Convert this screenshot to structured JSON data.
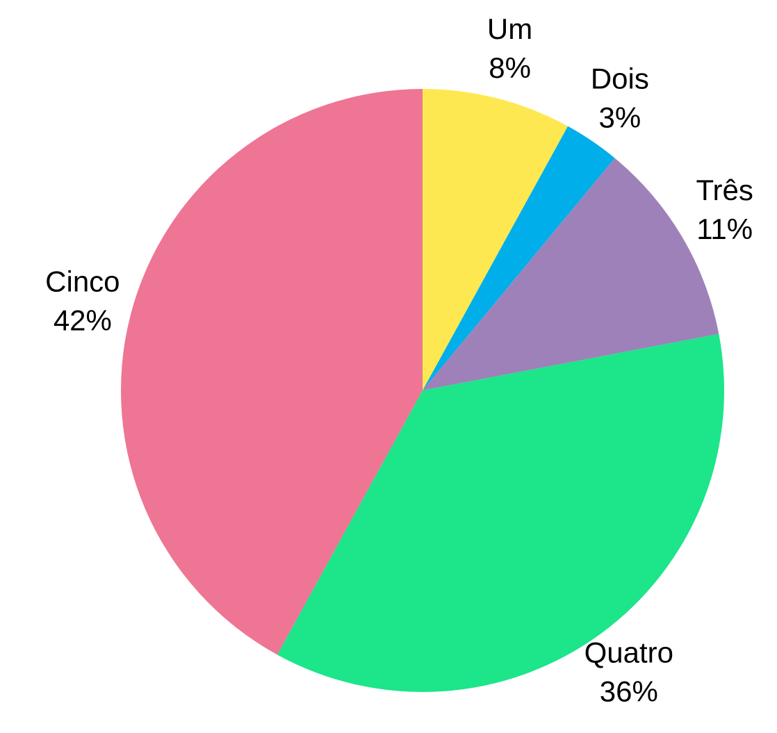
{
  "chart_data": {
    "type": "pie",
    "categories": [
      "Um",
      "Dois",
      "Três",
      "Quatro",
      "Cinco"
    ],
    "values": [
      8,
      3,
      11,
      36,
      42
    ],
    "value_labels": [
      "8%",
      "3%",
      "11%",
      "36%",
      "42%"
    ],
    "colors": [
      "#fee851",
      "#00aeea",
      "#9f81ba",
      "#1ce58a",
      "#ee7594"
    ]
  }
}
